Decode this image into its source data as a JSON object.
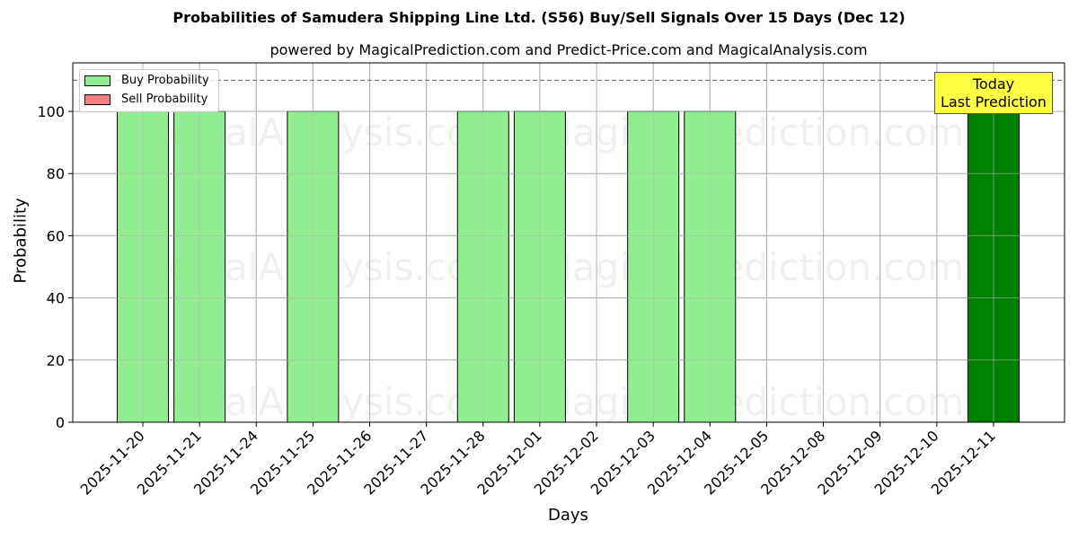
{
  "chart_data": {
    "type": "bar",
    "title": "Probabilities of Samudera Shipping Line Ltd. (S56) Buy/Sell Signals Over 15 Days (Dec 12)",
    "subtitle": "powered by MagicalPrediction.com and Predict-Price.com and MagicalAnalysis.com",
    "xlabel": "Days",
    "ylabel": "Probability",
    "ylim": [
      0,
      115
    ],
    "yticks": [
      0,
      20,
      40,
      60,
      80,
      100
    ],
    "categories": [
      "2025-11-20",
      "2025-11-21",
      "2025-11-24",
      "2025-11-25",
      "2025-11-26",
      "2025-11-27",
      "2025-11-28",
      "2025-12-01",
      "2025-12-02",
      "2025-12-03",
      "2025-12-04",
      "2025-12-05",
      "2025-12-08",
      "2025-12-09",
      "2025-12-10",
      "2025-12-11"
    ],
    "series": [
      {
        "name": "Buy Probability",
        "color": "#90ee90",
        "values": [
          100,
          100,
          0,
          100,
          0,
          0,
          100,
          100,
          0,
          100,
          100,
          0,
          0,
          0,
          0,
          0
        ]
      },
      {
        "name": "Sell Probability",
        "color": "#f08080",
        "values": [
          0,
          0,
          0,
          0,
          0,
          0,
          0,
          0,
          0,
          0,
          0,
          0,
          0,
          0,
          0,
          0
        ]
      },
      {
        "name": "Today Last Prediction",
        "color": "#008000",
        "values": [
          0,
          0,
          0,
          0,
          0,
          0,
          0,
          0,
          0,
          0,
          0,
          0,
          0,
          0,
          0,
          100
        ]
      }
    ],
    "reference_line": {
      "y": 110,
      "style": "dashed",
      "color": "#808080"
    },
    "annotation": "Today\nLast Prediction",
    "grid": true,
    "legend_position": "upper left",
    "watermarks": [
      "MagicalAnalysis.com",
      "MagicalPrediction.com"
    ]
  },
  "labels": {
    "title": "Probabilities of Samudera Shipping Line Ltd. (S56) Buy/Sell Signals Over 15 Days (Dec 12)",
    "subtitle": "powered by MagicalPrediction.com and Predict-Price.com and MagicalAnalysis.com",
    "xlabel": "Days",
    "ylabel": "Probability",
    "legend_buy": "Buy Probability",
    "legend_sell": "Sell Probability",
    "today_line1": "Today",
    "today_line2": "Last Prediction"
  }
}
